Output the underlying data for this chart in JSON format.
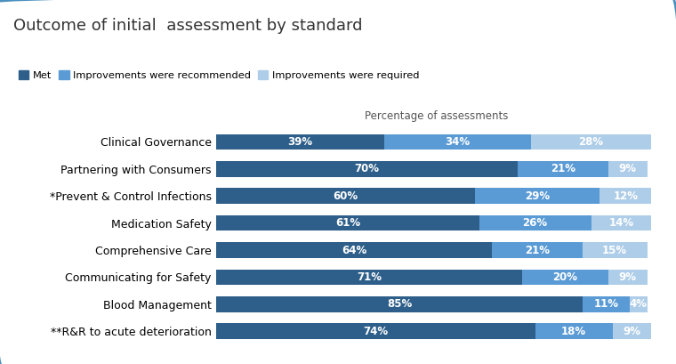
{
  "title": "Outcome of initial  assessment by standard",
  "xlabel": "Percentage of assessments",
  "categories": [
    "Clinical Governance",
    "Partnering with Consumers",
    "*Prevent & Control Infections",
    "Medication Safety",
    "Comprehensive Care",
    "Communicating for Safety",
    "Blood Management",
    "**R&R to acute deterioration"
  ],
  "met": [
    39,
    70,
    60,
    61,
    64,
    71,
    85,
    74
  ],
  "recommended": [
    34,
    21,
    29,
    26,
    21,
    20,
    11,
    18
  ],
  "required": [
    28,
    9,
    12,
    14,
    15,
    9,
    4,
    9
  ],
  "color_met": "#2E5F8A",
  "color_recommended": "#5B9BD5",
  "color_required": "#AECDE8",
  "legend_labels": [
    "Met",
    "Improvements were recommended",
    "Improvements were required"
  ],
  "background_color": "#FFFFFF",
  "border_color": "#4A90BF",
  "title_fontsize": 13,
  "label_fontsize": 8.5,
  "tick_fontsize": 9,
  "bar_height": 0.58,
  "text_color_on_bar": "#FFFFFF"
}
